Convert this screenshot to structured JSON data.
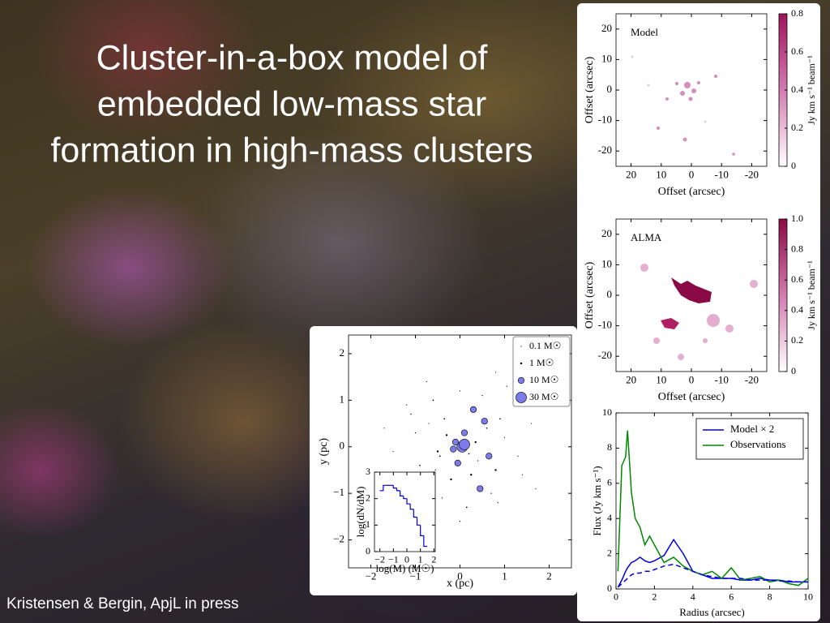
{
  "slide": {
    "title_lines": [
      "Cluster-in-a-box model of",
      "embedded low-mass star",
      "formation in high-mass clusters"
    ],
    "credit": "Kristensen & Bergin, ApjL in press"
  },
  "chart_data": [
    {
      "type": "image",
      "label": "Model",
      "xlabel": "Offset (arcsec)",
      "ylabel": "Offset (arcsec)",
      "xlim": [
        25,
        -25
      ],
      "ylim": [
        -25,
        25
      ],
      "xticks": [
        20,
        10,
        0,
        -10,
        -20
      ],
      "yticks": [
        20,
        10,
        0,
        -10,
        -20
      ],
      "clim": [
        0,
        0.8
      ],
      "cticks": [
        0,
        0.2,
        0.4,
        0.6,
        0.8
      ],
      "clabel": "Jy km s⁻¹ beam⁻¹",
      "colormap": [
        "#ffffff",
        "#d37bb0",
        "#a0135a"
      ]
    },
    {
      "type": "image",
      "label": "ALMA",
      "xlabel": "Offset (arcsec)",
      "ylabel": "Offset (arcsec)",
      "xlim": [
        25,
        -25
      ],
      "ylim": [
        -25,
        25
      ],
      "xticks": [
        20,
        10,
        0,
        -10,
        -20
      ],
      "yticks": [
        20,
        10,
        0,
        -10,
        -20
      ],
      "clim": [
        0,
        1
      ],
      "cticks": [
        0,
        0.2,
        0.4,
        0.6,
        0.8,
        {
          "value": 1,
          "label": "1.0"
        }
      ],
      "clabel": "Jy km s⁻¹ beam⁻¹",
      "colormap": [
        "#ffffff",
        "#d37bb0",
        "#8a0a45"
      ]
    },
    {
      "type": "scatter",
      "xlabel": "x (pc)",
      "ylabel": "y (pc)",
      "xlim": [
        -2.5,
        2.5
      ],
      "ylim": [
        -2.6,
        2.4
      ],
      "xticks": [
        {
          "value": -2,
          "label": "−2"
        },
        {
          "value": -1,
          "label": "−1"
        },
        0,
        1,
        2
      ],
      "yticks": [
        {
          "value": -2,
          "label": "−2"
        },
        {
          "value": -1,
          "label": "−1"
        },
        0,
        1,
        2
      ],
      "x": [
        0.05,
        -0.1,
        0.2,
        -0.3,
        0.1,
        0.4,
        -0.5,
        0.6,
        -0.7,
        0.8,
        -0.9,
        1.0,
        -1.1,
        1.2,
        -1.3,
        1.4,
        0.3,
        -0.2,
        0.7,
        -0.6,
        0.0,
        0.15,
        -0.05,
        0.5,
        -0.4,
        0.9,
        -1.0,
        1.3,
        -1.5,
        1.6,
        0.25,
        -0.35,
        0.45,
        -0.55,
        0.65,
        -0.75,
        0.85,
        -0.95,
        1.05,
        -1.2,
        0.1,
        -0.15,
        0.35,
        -0.45,
        0.55,
        1.7,
        -1.7,
        0.0,
        0.8,
        -0.8
      ],
      "y": [
        0.0,
        0.1,
        -0.15,
        0.25,
        0.3,
        -0.3,
        -0.1,
        0.4,
        0.5,
        -0.5,
        -0.4,
        0.2,
        0.7,
        0.9,
        -0.8,
        -0.6,
        0.8,
        -0.7,
        -1.0,
        1.0,
        1.2,
        -1.3,
        -0.35,
        1.1,
        -1.1,
        0.6,
        0.3,
        -0.2,
        -0.1,
        0.5,
        -0.6,
        0.6,
        -0.9,
        -0.5,
        -0.2,
        1.4,
        -1.2,
        -0.9,
        1.3,
        0.9,
        0.05,
        -0.05,
        0.1,
        -0.2,
        0.55,
        -0.9,
        0.4,
        -1.6,
        1.6,
        -1.5
      ],
      "mass": [
        30,
        10,
        0.5,
        1,
        10,
        0.3,
        1,
        0.5,
        0.2,
        1,
        0.5,
        0.2,
        0.3,
        0.1,
        0.5,
        0.2,
        10,
        1,
        0.3,
        0.5,
        0.2,
        0.5,
        10,
        0.3,
        0.2,
        0.5,
        0.3,
        0.1,
        0.2,
        0.1,
        1,
        0.5,
        10,
        0.3,
        10,
        0.2,
        0.3,
        0.5,
        0.2,
        0.1,
        30,
        10,
        1,
        0.5,
        10,
        0.1,
        0.2,
        0.3,
        0.2,
        0.1
      ],
      "color": "#7b7bea",
      "legend": "upper right",
      "size_legend": [
        {
          "value": 0.1,
          "label": "0.1 M☉"
        },
        {
          "value": 1,
          "label": "1 M☉"
        },
        {
          "value": 10,
          "label": "10 M☉"
        },
        {
          "value": 30,
          "label": "30 M☉"
        }
      ],
      "inset": {
        "type": "histogram",
        "xlabel": "log(M) (M☉)",
        "ylabel": "log(dN/dM)",
        "xlim": [
          -2.4,
          2.1
        ],
        "ylim": [
          0,
          3
        ],
        "xticks": [
          {
            "value": -2,
            "label": "−2"
          },
          {
            "value": -1,
            "label": "−1"
          },
          0,
          1,
          2
        ],
        "yticks": [
          0,
          1,
          2,
          3
        ],
        "bins": [
          -2,
          -1.75,
          -1.5,
          -1.25,
          -1,
          -0.75,
          -0.5,
          -0.25,
          0,
          0.25,
          0.5,
          0.75,
          1,
          1.25,
          1.5
        ],
        "values": [
          2.3,
          2.5,
          2.5,
          2.5,
          2.4,
          2.3,
          2.1,
          2.0,
          1.8,
          1.6,
          1.3,
          1.0,
          0.6,
          0.2
        ],
        "color": "#0000dd"
      }
    },
    {
      "type": "line",
      "xlabel": "Radius (arcsec)",
      "ylabel": "Flux (Jy km s⁻¹)",
      "xlim": [
        0,
        10
      ],
      "ylim": [
        0,
        10
      ],
      "xticks": [
        0,
        2,
        4,
        6,
        8,
        10
      ],
      "yticks": [
        0,
        2,
        4,
        6,
        8,
        10
      ],
      "legend": "upper right",
      "x": [
        0.1,
        0.3,
        0.5,
        0.6,
        0.8,
        1,
        1.25,
        1.5,
        1.75,
        2,
        2.5,
        3,
        3.5,
        4,
        4.5,
        5,
        5.5,
        6,
        6.5,
        7,
        7.5,
        8,
        8.5,
        9,
        9.5,
        10
      ],
      "series": [
        {
          "name": "Model × 2",
          "color": "#0000e0",
          "values": [
            0.1,
            0.5,
            1.0,
            1.2,
            1.5,
            1.6,
            1.8,
            1.6,
            1.5,
            1.6,
            1.9,
            2.8,
            2.0,
            1.0,
            0.8,
            0.6,
            0.6,
            0.6,
            0.5,
            0.5,
            0.6,
            0.5,
            0.5,
            0.4,
            0.4,
            0.4
          ]
        },
        {
          "name": "Observations",
          "color": "#008800",
          "values": [
            1.0,
            7.0,
            7.5,
            9.0,
            5.5,
            4.0,
            3.5,
            2.5,
            3.0,
            2.5,
            1.5,
            1.8,
            1.3,
            1.0,
            0.8,
            1.0,
            0.6,
            1.2,
            0.5,
            0.6,
            0.7,
            0.4,
            0.5,
            0.3,
            0.2,
            0.6
          ]
        },
        {
          "color": "#0000e0",
          "dashed": true,
          "values": [
            0.1,
            0.3,
            0.5,
            0.6,
            0.8,
            0.9,
            0.9,
            1.0,
            1.0,
            1.1,
            1.3,
            1.4,
            1.2,
            1.0,
            0.8,
            0.7,
            0.6,
            0.6,
            0.6,
            0.5,
            0.5,
            0.5,
            0.45,
            0.45,
            0.4,
            0.4
          ]
        }
      ]
    }
  ]
}
